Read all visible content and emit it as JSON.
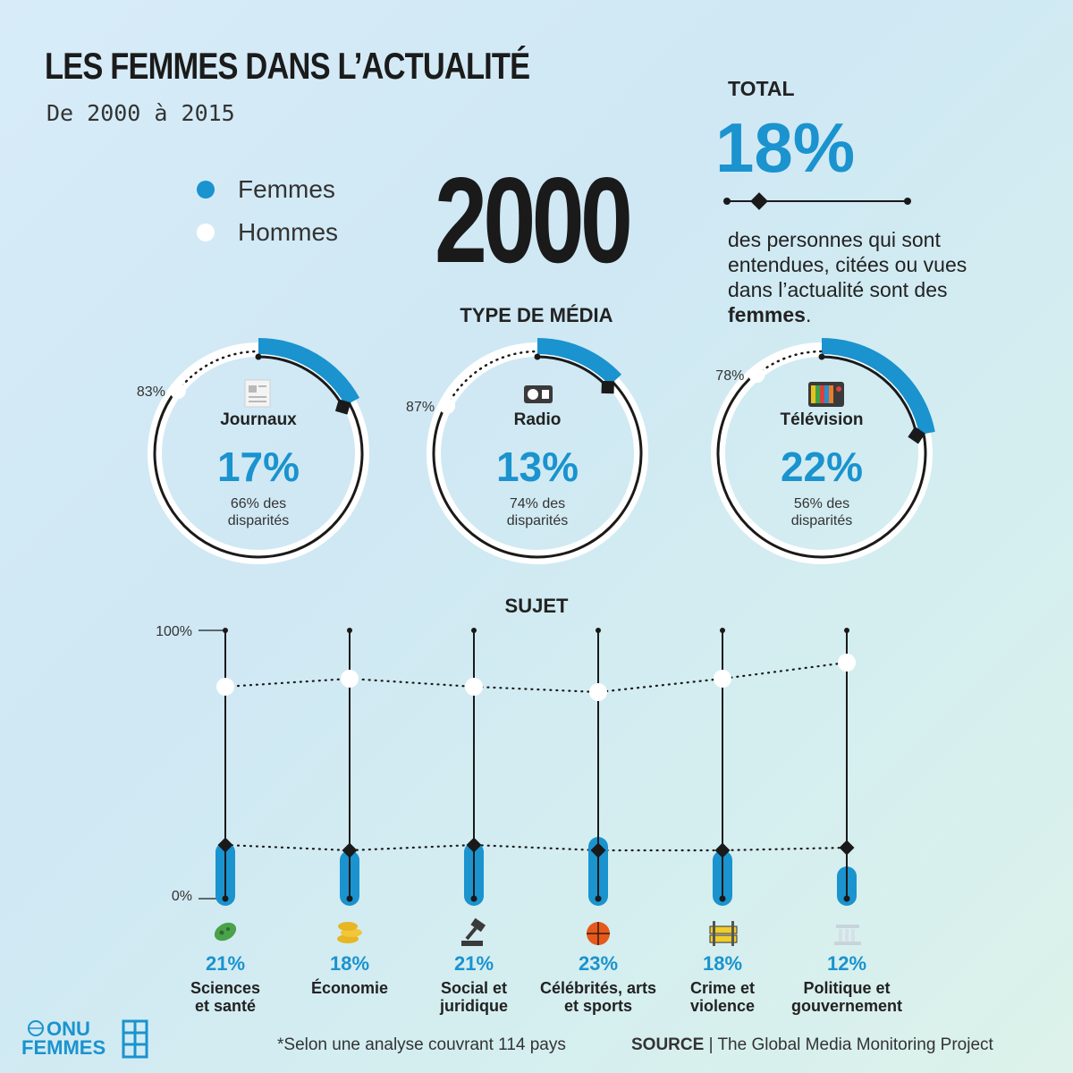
{
  "title": "LES FEMMES DANS L’ACTUALITÉ",
  "subtitle": "De 2000 à 2015",
  "year": "2000",
  "legend": [
    {
      "label": "Femmes",
      "color": "#1a93cf"
    },
    {
      "label": "Hommes",
      "color": "#ffffff"
    }
  ],
  "total": {
    "label": "TOTAL",
    "value": "18%",
    "desc_lines": [
      "des personnes qui sont",
      "entendues, citées ou vues",
      "dans l’actualité sont des"
    ],
    "desc_bold": "femmes",
    "desc_end": "."
  },
  "media_section_title": "TYPE DE MÉDIA",
  "subject_section_title": "SUJET",
  "footnote": "*Selon une analyse couvrant 114 pays",
  "source": {
    "label": "SOURCE",
    "text": "| The Global Media Monitoring Project"
  },
  "logo": {
    "line1": "ONU",
    "line2": "FEMMES"
  },
  "colors": {
    "women": "#1a93cf",
    "men": "#ffffff",
    "ink": "#1a1a1a"
  },
  "chart_data": [
    {
      "type": "pie",
      "title": "TYPE DE MÉDIA",
      "items": [
        {
          "name": "Journaux",
          "icon": "newspaper-icon",
          "women_pct": 17,
          "women_label": "17%",
          "men_pct": 83,
          "men_label": "83%",
          "disparity_line1": "66% des",
          "disparity_line2": "disparités"
        },
        {
          "name": "Radio",
          "icon": "radio-icon",
          "women_pct": 13,
          "women_label": "13%",
          "men_pct": 87,
          "men_label": "87%",
          "disparity_line1": "74% des",
          "disparity_line2": "disparités"
        },
        {
          "name": "Télévision",
          "icon": "television-icon",
          "women_pct": 22,
          "women_label": "22%",
          "men_pct": 78,
          "men_label": "78%",
          "disparity_line1": "56% des",
          "disparity_line2": "disparités"
        }
      ]
    },
    {
      "type": "bar",
      "title": "SUJET",
      "ylim": [
        0,
        100
      ],
      "ytick_labels": [
        "100%",
        "0%"
      ],
      "categories": [
        {
          "line1": "Sciences",
          "line2": "et santé",
          "icon": "microbe-icon"
        },
        {
          "line1": "Économie",
          "line2": "",
          "icon": "coins-icon"
        },
        {
          "line1": "Social et",
          "line2": "juridique",
          "icon": "gavel-icon"
        },
        {
          "line1": "Célébrités, arts",
          "line2": "et sports",
          "icon": "basketball-icon"
        },
        {
          "line1": "Crime et",
          "line2": "violence",
          "icon": "barrier-icon"
        },
        {
          "line1": "Politique et",
          "line2": "gouvernement",
          "icon": "government-building-icon"
        }
      ],
      "series": [
        {
          "name": "Femmes",
          "values": [
            21,
            18,
            21,
            23,
            18,
            12
          ],
          "labels": [
            "21%",
            "18%",
            "21%",
            "23%",
            "18%",
            "12%"
          ]
        },
        {
          "name": "Hommes",
          "values": [
            79,
            82,
            79,
            77,
            82,
            88
          ]
        }
      ],
      "women_2015_markers": [
        20,
        18,
        20,
        18,
        18,
        19
      ]
    }
  ]
}
